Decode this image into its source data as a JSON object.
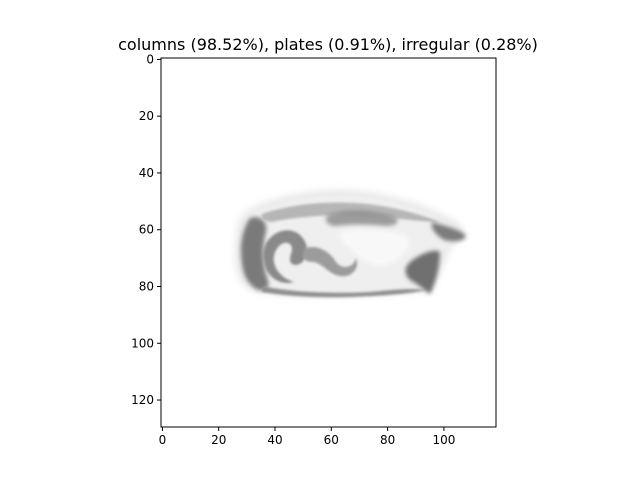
{
  "figure": {
    "title": "columns (98.52%), plates (0.91%), irregular (0.28%)",
    "image_description_hidden": false
  },
  "axes": {
    "x_ticks": [
      0,
      20,
      40,
      60,
      80,
      100
    ],
    "y_ticks": [
      0,
      20,
      40,
      60,
      80,
      100,
      120
    ],
    "x_range": [
      -0.5,
      118.5
    ],
    "y_range": [
      129.5,
      -0.5
    ],
    "grid": false
  },
  "colors": {
    "background": "#ffffff",
    "crystal_dark": "#6b6b6b",
    "crystal_mid": "#9a9a9a",
    "crystal_light": "#e8e8e8",
    "axis": "#000000"
  }
}
